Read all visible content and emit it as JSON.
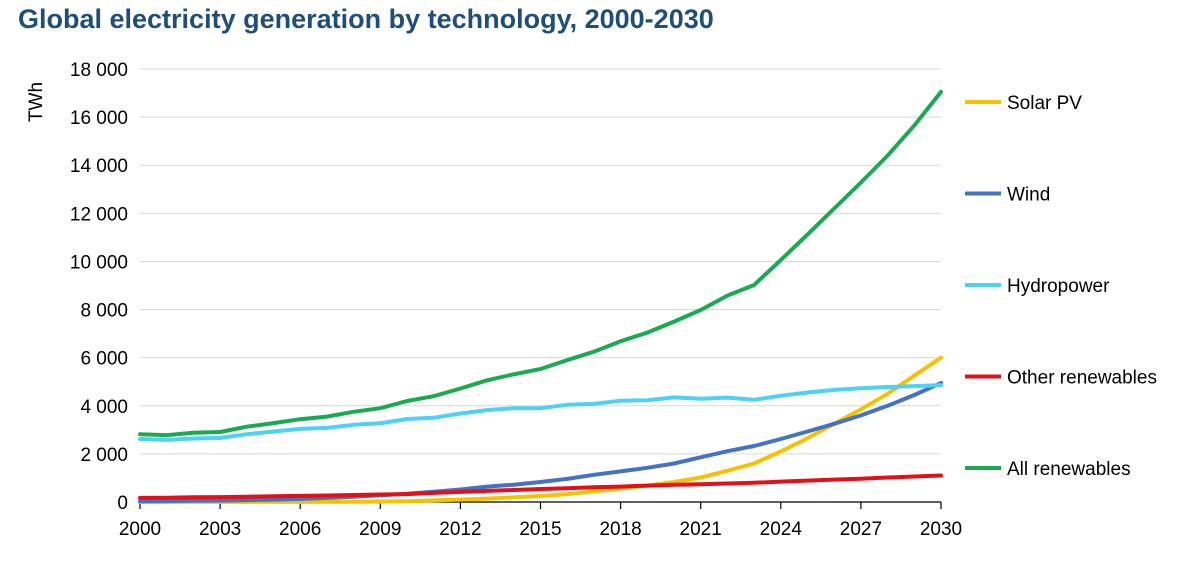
{
  "chart_data": {
    "type": "line",
    "title": "Global electricity generation by technology, 2000-2030",
    "ylabel": "TWh",
    "xlabel": "",
    "xlim": [
      2000,
      2030
    ],
    "ylim": [
      0,
      18000
    ],
    "x_ticks": [
      "2000",
      "2003",
      "2006",
      "2009",
      "2012",
      "2015",
      "2018",
      "2021",
      "2024",
      "2027",
      "2030"
    ],
    "y_ticks": [
      "0",
      "2 000",
      "4 000",
      "6 000",
      "8 000",
      "10 000",
      "12 000",
      "14 000",
      "16 000",
      "18 000"
    ],
    "grid": "horizontal",
    "legend_position": "right",
    "x": [
      2000,
      2001,
      2002,
      2003,
      2004,
      2005,
      2006,
      2007,
      2008,
      2009,
      2010,
      2011,
      2012,
      2013,
      2014,
      2015,
      2016,
      2017,
      2018,
      2019,
      2020,
      2021,
      2022,
      2023,
      2024,
      2025,
      2026,
      2027,
      2028,
      2029,
      2030
    ],
    "series": [
      {
        "name": "Solar PV",
        "color": "#f5c200",
        "values": [
          1,
          2,
          3,
          4,
          5,
          5,
          6,
          8,
          12,
          20,
          32,
          65,
          100,
          140,
          190,
          250,
          330,
          440,
          560,
          680,
          830,
          1020,
          1300,
          1600,
          2100,
          2650,
          3250,
          3850,
          4500,
          5250,
          6000
        ]
      },
      {
        "name": "Wind",
        "color": "#4472c4",
        "values": [
          30,
          40,
          50,
          60,
          80,
          100,
          130,
          170,
          220,
          280,
          340,
          430,
          520,
          640,
          720,
          830,
          960,
          1130,
          1270,
          1420,
          1600,
          1860,
          2110,
          2330,
          2620,
          2930,
          3250,
          3600,
          4000,
          4450,
          4950
        ]
      },
      {
        "name": "Hydropower",
        "color": "#4fd0f5",
        "values": [
          2620,
          2580,
          2640,
          2660,
          2820,
          2930,
          3040,
          3080,
          3210,
          3270,
          3450,
          3500,
          3680,
          3820,
          3900,
          3900,
          4040,
          4080,
          4210,
          4230,
          4350,
          4290,
          4340,
          4250,
          4420,
          4550,
          4660,
          4730,
          4780,
          4820,
          4860
        ]
      },
      {
        "name": "Other renewables",
        "color": "#e3101a",
        "values": [
          170,
          180,
          195,
          205,
          220,
          240,
          255,
          270,
          290,
          310,
          330,
          380,
          420,
          460,
          500,
          540,
          575,
          610,
          640,
          680,
          720,
          740,
          770,
          800,
          850,
          890,
          930,
          970,
          1020,
          1060,
          1100
        ]
      },
      {
        "name": "All renewables",
        "color": "#1aaa4f",
        "values": [
          2820,
          2780,
          2880,
          2910,
          3130,
          3280,
          3440,
          3550,
          3750,
          3900,
          4200,
          4400,
          4720,
          5060,
          5310,
          5530,
          5900,
          6250,
          6680,
          7040,
          7500,
          7980,
          8580,
          9020,
          10060,
          11120,
          12200,
          13280,
          14400,
          15650,
          17050
        ]
      }
    ]
  }
}
